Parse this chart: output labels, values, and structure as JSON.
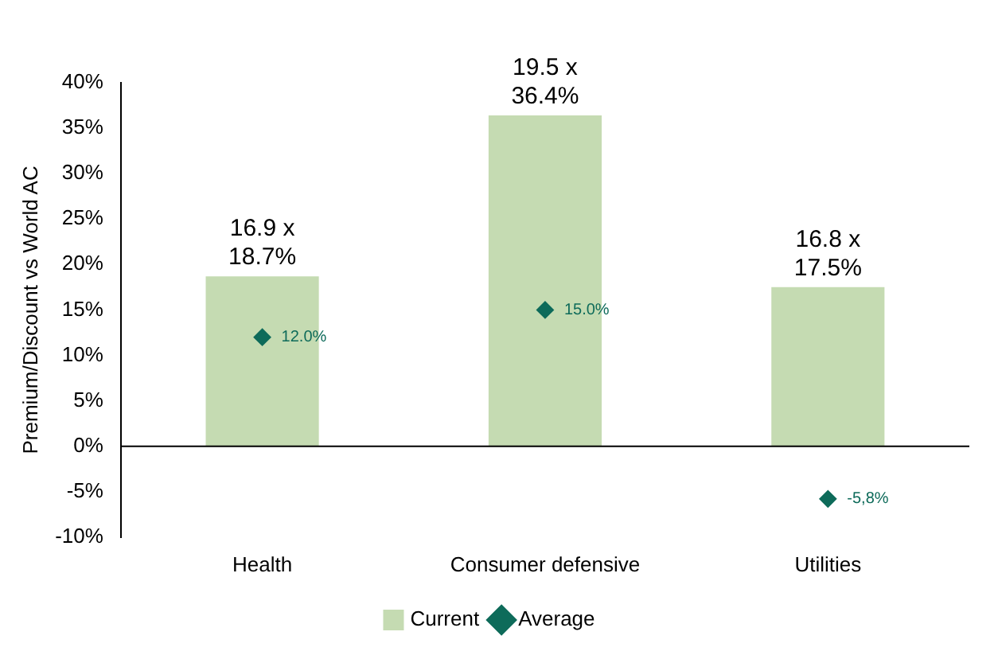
{
  "chart_data": {
    "type": "bar",
    "ylabel": "Premium/Discount vs World AC",
    "categories": [
      "Health",
      "Consumer defensive",
      "Utilities"
    ],
    "series": [
      {
        "name": "Current",
        "color": "#c5dbb2",
        "values": [
          18.7,
          36.4,
          17.5
        ],
        "value_labels": [
          "16.9 x\n18.7%",
          "19.5 x\n36.4%",
          "16.8 x\n17.5%"
        ]
      },
      {
        "name": "Average",
        "type": "scatter",
        "color": "#0e6b5a",
        "x": [
          "Health",
          "Consumer defensive",
          "Utilities"
        ],
        "values": [
          12.0,
          15.0,
          -5.8
        ],
        "value_labels": [
          "12.0%",
          "15.0%",
          "-5,8%"
        ]
      }
    ],
    "ylim": [
      -10,
      40
    ],
    "yticks": [
      {
        "value": -10,
        "label": "-10%"
      },
      {
        "value": -5,
        "label": "-5%"
      },
      {
        "value": 0,
        "label": "0%"
      },
      {
        "value": 5,
        "label": "5%"
      },
      {
        "value": 10,
        "label": "10%"
      },
      {
        "value": 15,
        "label": "15%"
      },
      {
        "value": 20,
        "label": "20%"
      },
      {
        "value": 25,
        "label": "25%"
      },
      {
        "value": 30,
        "label": "30%"
      },
      {
        "value": 35,
        "label": "35%"
      },
      {
        "value": 40,
        "label": "40%"
      }
    ],
    "ref_lines": [
      {
        "axis": "y",
        "value": 0,
        "color": "#000000"
      }
    ],
    "grid": false,
    "legend": "bottom",
    "marker": "diamond"
  }
}
